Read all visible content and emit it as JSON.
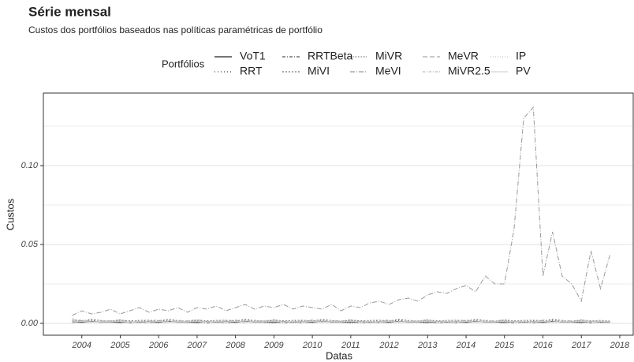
{
  "chart_data": {
    "type": "line",
    "title": "Série mensal",
    "subtitle": "Custos dos portfólios baseados nas políticas paramétricas de portfólio",
    "legend_title": "Portfólios",
    "x_label": "Datas",
    "y_label": "Custos",
    "xlim": [
      2003.0,
      2018.35
    ],
    "xticks": [
      2004,
      2005,
      2006,
      2007,
      2008,
      2009,
      2010,
      2011,
      2012,
      2013,
      2014,
      2015,
      2016,
      2017,
      2018
    ],
    "ylim": [
      -0.0075,
      0.146
    ],
    "yticks": [
      {
        "value": 0,
        "label": "0.00"
      },
      {
        "value": 0.05,
        "label": "0.05"
      },
      {
        "value": 0.1,
        "label": "0.10"
      }
    ],
    "minor_yticks": [
      0.025,
      0.075,
      0.125
    ],
    "grid": true,
    "x": [
      2003.75,
      2004,
      2004.25,
      2004.5,
      2004.75,
      2005,
      2005.25,
      2005.5,
      2005.75,
      2006,
      2006.25,
      2006.5,
      2006.75,
      2007,
      2007.25,
      2007.5,
      2007.75,
      2008,
      2008.25,
      2008.5,
      2008.75,
      2009,
      2009.25,
      2009.5,
      2009.75,
      2010,
      2010.25,
      2010.5,
      2010.75,
      2011,
      2011.25,
      2011.5,
      2011.75,
      2012,
      2012.25,
      2012.5,
      2012.75,
      2013,
      2013.25,
      2013.5,
      2013.75,
      2014,
      2014.25,
      2014.5,
      2014.75,
      2015,
      2015.25,
      2015.5,
      2015.75,
      2016,
      2016.25,
      2016.5,
      2016.75,
      2017,
      2017.25,
      2017.5,
      2017.75
    ],
    "series": [
      {
        "name": "VoT1",
        "color": "#222222",
        "dash": "",
        "values": [
          0.001,
          0.0006,
          0.0012,
          0.0008,
          0.0009,
          0.0005,
          0.0011,
          0.0007,
          0.001,
          0.0006,
          0.0012,
          0.0008,
          0.0009,
          0.0005,
          0.0011,
          0.0007,
          0.001,
          0.0006,
          0.0012,
          0.0008,
          0.0009,
          0.0005,
          0.0011,
          0.0007,
          0.001,
          0.0006,
          0.0012,
          0.0008,
          0.0009,
          0.0005,
          0.0011,
          0.0007,
          0.001,
          0.0006,
          0.0012,
          0.0008,
          0.0009,
          0.0005,
          0.0011,
          0.0007,
          0.001,
          0.0006,
          0.0012,
          0.0008,
          0.0009,
          0.0005,
          0.0011,
          0.0007,
          0.001,
          0.0006,
          0.0012,
          0.0008,
          0.0009,
          0.0005,
          0.0011,
          0.0007,
          0.0008
        ]
      },
      {
        "name": "RRT",
        "color": "#444444",
        "dash": "1,3",
        "values": [
          0.0015,
          0.001,
          0.002,
          0.0012,
          0.0008,
          0.0018,
          0.0011,
          0.0014,
          0.0015,
          0.001,
          0.002,
          0.0012,
          0.0008,
          0.0018,
          0.0011,
          0.0014,
          0.0015,
          0.001,
          0.002,
          0.0012,
          0.0008,
          0.0018,
          0.0011,
          0.0014,
          0.0015,
          0.001,
          0.002,
          0.0012,
          0.0008,
          0.0018,
          0.0011,
          0.0014,
          0.0015,
          0.001,
          0.002,
          0.0012,
          0.0008,
          0.0018,
          0.0011,
          0.0014,
          0.0015,
          0.001,
          0.002,
          0.0012,
          0.0008,
          0.0018,
          0.0011,
          0.0014,
          0.0015,
          0.001,
          0.002,
          0.0012,
          0.0008,
          0.0018,
          0.0011,
          0.0014,
          0.0012
        ]
      },
      {
        "name": "RRTBeta",
        "color": "#555555",
        "dash": "4,2,1,2",
        "values": [
          0.0005,
          0.0009,
          0.0007,
          0.0012,
          0.0006,
          0.001,
          0.0004,
          0.0008,
          0.0005,
          0.0009,
          0.0007,
          0.0012,
          0.0006,
          0.001,
          0.0004,
          0.0008,
          0.0005,
          0.0009,
          0.0007,
          0.0012,
          0.0006,
          0.001,
          0.0004,
          0.0008,
          0.0005,
          0.0009,
          0.0007,
          0.0012,
          0.0006,
          0.001,
          0.0004,
          0.0008,
          0.0005,
          0.0009,
          0.0007,
          0.0012,
          0.0006,
          0.001,
          0.0004,
          0.0008,
          0.0005,
          0.0009,
          0.0007,
          0.0012,
          0.0006,
          0.001,
          0.0004,
          0.0008,
          0.0005,
          0.0009,
          0.0007,
          0.0012,
          0.0006,
          0.001,
          0.0004,
          0.0008,
          0.0006
        ]
      },
      {
        "name": "MiVI",
        "color": "#777777",
        "dash": "2,2",
        "values": [
          0.002,
          0.0015,
          0.0025,
          0.0018,
          0.0012,
          0.0022,
          0.0016,
          0.0019,
          0.002,
          0.0015,
          0.0025,
          0.0018,
          0.0012,
          0.0022,
          0.0016,
          0.0019,
          0.002,
          0.0015,
          0.0025,
          0.0018,
          0.0012,
          0.0022,
          0.0016,
          0.0019,
          0.002,
          0.0015,
          0.0025,
          0.0018,
          0.0012,
          0.0022,
          0.0016,
          0.0019,
          0.002,
          0.0015,
          0.0025,
          0.0018,
          0.0012,
          0.0022,
          0.0016,
          0.0019,
          0.002,
          0.0015,
          0.0025,
          0.0018,
          0.0012,
          0.0022,
          0.0016,
          0.0019,
          0.002,
          0.0015,
          0.0025,
          0.0018,
          0.0012,
          0.0022,
          0.0016,
          0.0019,
          0.0015
        ]
      },
      {
        "name": "MiVR",
        "color": "#888888",
        "dash": "1,1",
        "values": [
          0.003,
          0.001,
          0.0015,
          0.0008,
          0.0012,
          0.002,
          0.0009,
          0.0011,
          0.0013,
          0.001,
          0.0015,
          0.0008,
          0.0012,
          0.002,
          0.0009,
          0.0011,
          0.0013,
          0.001,
          0.0015,
          0.0008,
          0.0012,
          0.002,
          0.0009,
          0.0011,
          0.0013,
          0.001,
          0.0015,
          0.0008,
          0.0012,
          0.002,
          0.0009,
          0.0011,
          0.0013,
          0.001,
          0.0015,
          0.0008,
          0.0012,
          0.002,
          0.0009,
          0.0011,
          0.0013,
          0.001,
          0.0015,
          0.0008,
          0.0012,
          0.002,
          0.0009,
          0.0011,
          0.0013,
          0.001,
          0.0015,
          0.0008,
          0.0012,
          0.002,
          0.0009,
          0.0011,
          0.001
        ]
      },
      {
        "name": "MeVI",
        "color": "#999999",
        "dash": "6,2,1,2",
        "values": [
          0.005,
          0.008,
          0.006,
          0.007,
          0.009,
          0.006,
          0.008,
          0.01,
          0.007,
          0.009,
          0.008,
          0.01,
          0.007,
          0.01,
          0.009,
          0.011,
          0.008,
          0.01,
          0.012,
          0.009,
          0.011,
          0.01,
          0.012,
          0.009,
          0.011,
          0.01,
          0.009,
          0.012,
          0.008,
          0.011,
          0.01,
          0.013,
          0.014,
          0.012,
          0.015,
          0.016,
          0.014,
          0.018,
          0.02,
          0.019,
          0.022,
          0.024,
          0.02,
          0.03,
          0.025,
          0.025,
          0.06,
          0.13,
          0.137,
          0.03,
          0.058,
          0.03,
          0.025,
          0.014,
          0.046,
          0.022,
          0.044
        ]
      },
      {
        "name": "MeVR",
        "color": "#aaaaaa",
        "dash": "6,3",
        "values": [
          0.0012,
          0.0018,
          0.001,
          0.0014,
          0.0016,
          0.0009,
          0.0013,
          0.0011,
          0.0012,
          0.0018,
          0.001,
          0.0014,
          0.0016,
          0.0009,
          0.0013,
          0.0011,
          0.0012,
          0.0018,
          0.001,
          0.0014,
          0.0016,
          0.0009,
          0.0013,
          0.0011,
          0.0012,
          0.0018,
          0.001,
          0.0014,
          0.0016,
          0.0009,
          0.0013,
          0.0011,
          0.0012,
          0.0018,
          0.001,
          0.0014,
          0.0016,
          0.0009,
          0.0013,
          0.0011,
          0.0012,
          0.0018,
          0.001,
          0.0014,
          0.0016,
          0.0009,
          0.0013,
          0.0011,
          0.0012,
          0.0018,
          0.001,
          0.0014,
          0.0016,
          0.0009,
          0.0013,
          0.0011,
          0.0012
        ]
      },
      {
        "name": "MiVR2.5",
        "color": "#bbbbbb",
        "dash": "3,2,1,2",
        "values": [
          0.0018,
          0.0022,
          0.0014,
          0.002,
          0.0016,
          0.0024,
          0.0012,
          0.0019,
          0.0018,
          0.0022,
          0.0014,
          0.002,
          0.0016,
          0.0024,
          0.0012,
          0.0019,
          0.0018,
          0.0022,
          0.0014,
          0.002,
          0.0016,
          0.0024,
          0.0012,
          0.0019,
          0.0018,
          0.0022,
          0.0014,
          0.002,
          0.0016,
          0.0024,
          0.0012,
          0.0019,
          0.0018,
          0.0022,
          0.0014,
          0.002,
          0.0016,
          0.0024,
          0.0012,
          0.0019,
          0.0018,
          0.0022,
          0.0014,
          0.002,
          0.0016,
          0.0024,
          0.0012,
          0.0019,
          0.0018,
          0.0022,
          0.0014,
          0.002,
          0.0016,
          0.0024,
          0.0012,
          0.0019,
          0.0016
        ]
      },
      {
        "name": "IP",
        "color": "#c8c8c8",
        "dash": "1,2",
        "values": [
          0.0006,
          0.0004,
          0.0008,
          0.0005,
          0.0007,
          0.0003,
          0.0009,
          0.0006,
          0.0006,
          0.0004,
          0.0008,
          0.0005,
          0.0007,
          0.0003,
          0.0009,
          0.0006,
          0.0006,
          0.0004,
          0.0008,
          0.0005,
          0.0007,
          0.0003,
          0.0009,
          0.0006,
          0.0006,
          0.0004,
          0.0008,
          0.0005,
          0.0007,
          0.0003,
          0.0009,
          0.0006,
          0.0006,
          0.0004,
          0.0008,
          0.0005,
          0.0007,
          0.0003,
          0.0009,
          0.0006,
          0.0006,
          0.0004,
          0.0008,
          0.0005,
          0.0007,
          0.0003,
          0.0009,
          0.0006,
          0.0006,
          0.0004,
          0.0008,
          0.0005,
          0.0007,
          0.0003,
          0.0009,
          0.0006,
          0.0005
        ]
      },
      {
        "name": "PV",
        "color": "#d4d4d4",
        "dash": "",
        "values": [
          0.0009,
          0.0013,
          0.0007,
          0.0011,
          0.001,
          0.0015,
          0.0008,
          0.0012,
          0.0009,
          0.0013,
          0.0007,
          0.0011,
          0.001,
          0.0015,
          0.0008,
          0.0012,
          0.0009,
          0.0013,
          0.0007,
          0.0011,
          0.001,
          0.0015,
          0.0008,
          0.0012,
          0.0009,
          0.0013,
          0.0007,
          0.0011,
          0.001,
          0.0015,
          0.0008,
          0.0012,
          0.0009,
          0.0013,
          0.0007,
          0.0011,
          0.001,
          0.0015,
          0.0008,
          0.0012,
          0.0009,
          0.0013,
          0.0007,
          0.0011,
          0.001,
          0.0015,
          0.0008,
          0.0012,
          0.0009,
          0.0013,
          0.0007,
          0.0011,
          0.001,
          0.0015,
          0.0008,
          0.0012,
          0.001
        ]
      }
    ]
  }
}
